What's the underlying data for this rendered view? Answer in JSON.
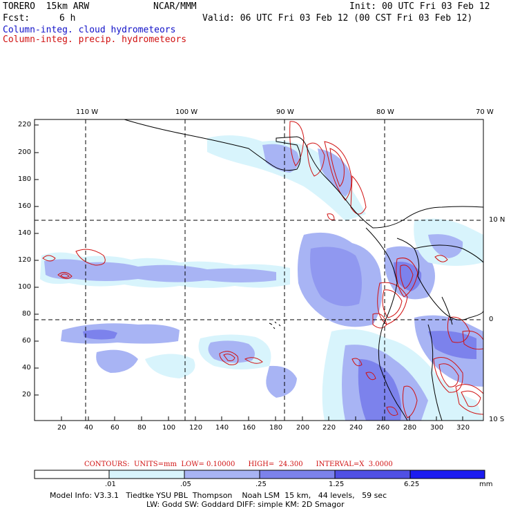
{
  "header": {
    "model": "TORERO  15km ARW",
    "org": "NCAR/MMM",
    "init": "Init: 00 UTC Fri 03 Feb 12",
    "fcst_label": "Fcst:",
    "fcst_value": "6 h",
    "valid": "Valid: 06 UTC Fri 03 Feb 12 (00 CST Fri 03 Feb 12)"
  },
  "legend": {
    "cloud": "Column-integ. cloud hydrometeors",
    "precip": "Column-integ. precip. hydrometeors",
    "cloud_color": "#1010c8",
    "precip_color": "#d01010"
  },
  "map": {
    "top_lon_labels": [
      "110 W",
      "100 W",
      "90 W",
      "80 W",
      "70 W"
    ],
    "right_lat_labels": [
      "10 N",
      "0",
      "10 S"
    ],
    "left_y_ticks": [
      "220",
      "200",
      "180",
      "160",
      "140",
      "120",
      "100",
      "80",
      "60",
      "40",
      "20"
    ],
    "bottom_x_ticks": [
      "20",
      "40",
      "60",
      "80",
      "100",
      "120",
      "140",
      "160",
      "180",
      "200",
      "220",
      "240",
      "260",
      "280",
      "300",
      "320"
    ]
  },
  "contour_info": "CONTOURS:  UNITS=mm  LOW= 0.10000      HIGH=  24.300      INTERVAL=X  3.0000",
  "colorbar": {
    "labels": [
      ".01",
      ".05",
      ".25",
      "1.25",
      "6.25"
    ],
    "unit": "mm",
    "colors": [
      "#ffffff",
      "#d8f4fc",
      "#a8b4f4",
      "#7c82ec",
      "#5050e4",
      "#1c1cf0"
    ]
  },
  "footer": {
    "line1": "Model Info: V3.3.1   Tiedtke YSU PBL  Thompson    Noah LSM  15 km,   44 levels,   59 sec",
    "line2": "LW: Godd SW: Goddard DIFF: simple KM: 2D Smagor"
  }
}
